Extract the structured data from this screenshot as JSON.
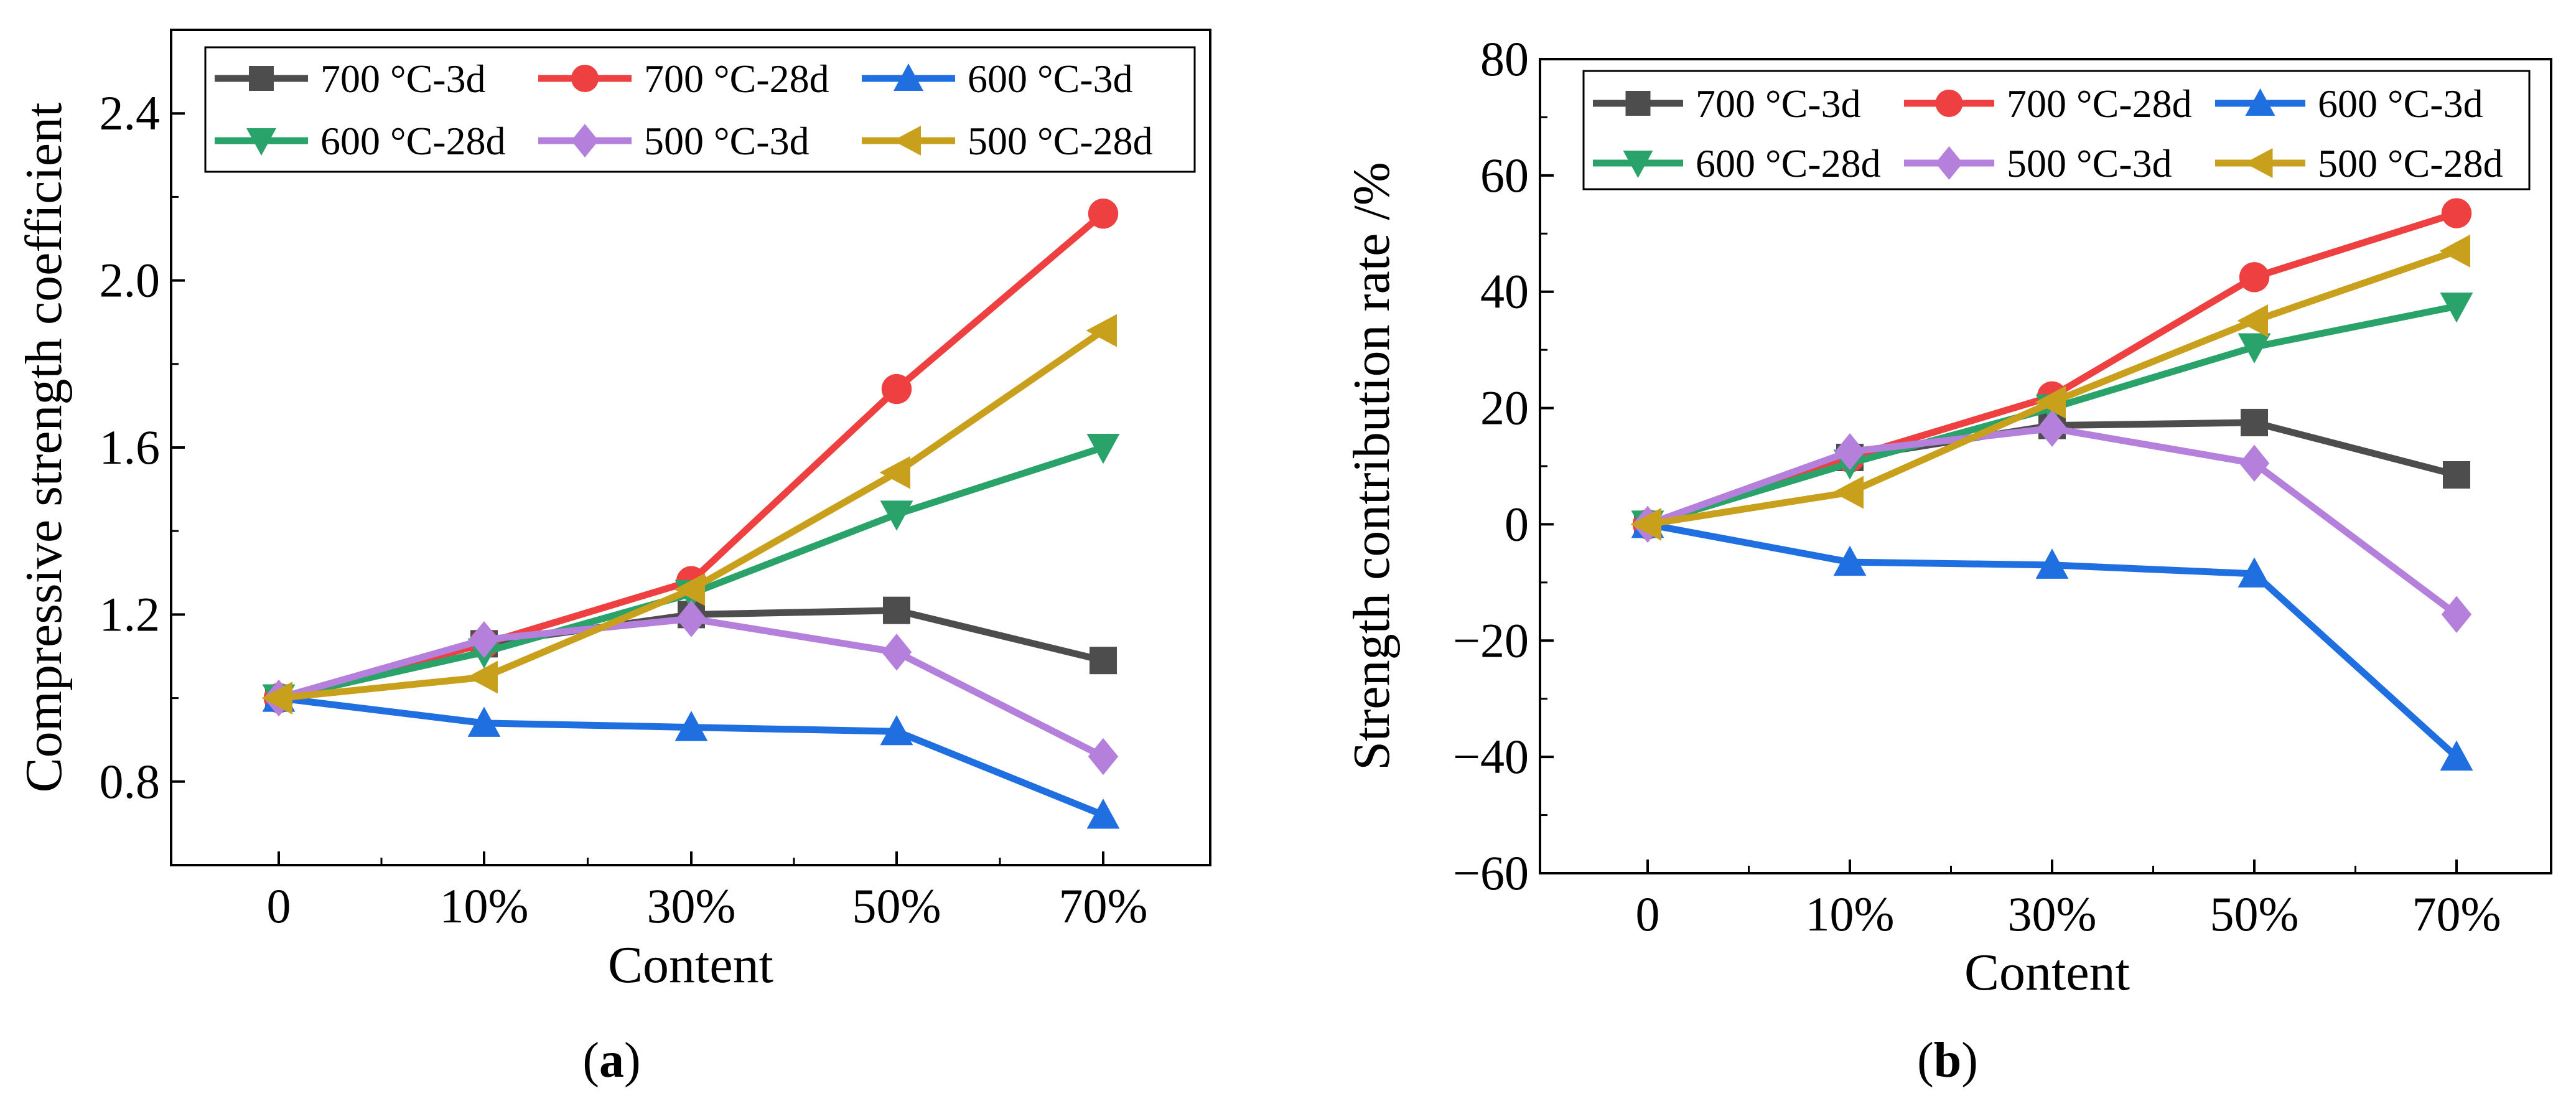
{
  "figure": {
    "panels": [
      {
        "label": "a",
        "caption_open": "(",
        "caption_close": ")"
      },
      {
        "label": "b",
        "caption_open": "(",
        "caption_close": ")"
      }
    ]
  },
  "chart_data": [
    {
      "type": "line",
      "panel": "a",
      "title": "",
      "xlabel": "Content",
      "ylabel": "Compressive strength coefficient",
      "categories": [
        "0",
        "10%",
        "30%",
        "50%",
        "70%"
      ],
      "ylim": [
        0.6,
        2.6
      ],
      "yticks": [
        0.8,
        1.2,
        1.6,
        2.0,
        2.4
      ],
      "ytick_labels": [
        "0.8",
        "1.2",
        "1.6",
        "2.0",
        "2.4"
      ],
      "legend_position": "top-left",
      "series": [
        {
          "name": "700 °C-3d",
          "color": "#4d4d4d",
          "marker": "square",
          "values": [
            1.0,
            1.13,
            1.2,
            1.21,
            1.09
          ]
        },
        {
          "name": "700 °C-28d",
          "color": "#ee4040",
          "marker": "circle",
          "values": [
            1.0,
            1.13,
            1.28,
            1.74,
            2.16
          ]
        },
        {
          "name": "600 °C-3d",
          "color": "#1f6fe0",
          "marker": "triangle-up",
          "values": [
            1.0,
            0.94,
            0.93,
            0.92,
            0.72
          ]
        },
        {
          "name": "600 °C-28d",
          "color": "#2aa36b",
          "marker": "triangle-down",
          "values": [
            1.0,
            1.11,
            1.25,
            1.44,
            1.6
          ]
        },
        {
          "name": "500 °C-3d",
          "color": "#b57fdc",
          "marker": "diamond",
          "values": [
            1.0,
            1.14,
            1.19,
            1.11,
            0.86
          ]
        },
        {
          "name": "500 °C-28d",
          "color": "#c9a01c",
          "marker": "triangle-left",
          "values": [
            1.0,
            1.05,
            1.26,
            1.54,
            1.88
          ]
        }
      ]
    },
    {
      "type": "line",
      "panel": "b",
      "title": "",
      "xlabel": "Content",
      "ylabel": "Strength contribution rate /%",
      "categories": [
        "0",
        "10%",
        "30%",
        "50%",
        "70%"
      ],
      "ylim": [
        -60,
        80
      ],
      "yticks": [
        -60,
        -40,
        -20,
        0,
        20,
        40,
        60,
        80
      ],
      "ytick_labels": [
        "−60",
        "−40",
        "−20",
        "0",
        "20",
        "40",
        "60",
        "80"
      ],
      "legend_position": "top-left",
      "series": [
        {
          "name": "700 °C-3d",
          "color": "#4d4d4d",
          "marker": "square",
          "values": [
            0,
            11.5,
            17.0,
            17.5,
            8.5
          ]
        },
        {
          "name": "700 °C-28d",
          "color": "#ee4040",
          "marker": "circle",
          "values": [
            0,
            11.5,
            22.0,
            42.5,
            53.5
          ]
        },
        {
          "name": "600 °C-3d",
          "color": "#1f6fe0",
          "marker": "triangle-up",
          "values": [
            0,
            -6.5,
            -7.0,
            -8.5,
            -40.0
          ]
        },
        {
          "name": "600 °C-28d",
          "color": "#2aa36b",
          "marker": "triangle-down",
          "values": [
            0,
            10.5,
            20.0,
            30.5,
            37.5
          ]
        },
        {
          "name": "500 °C-3d",
          "color": "#b57fdc",
          "marker": "diamond",
          "values": [
            0,
            12.5,
            16.5,
            10.5,
            -15.5
          ]
        },
        {
          "name": "500 °C-28d",
          "color": "#c9a01c",
          "marker": "triangle-left",
          "values": [
            0,
            5.5,
            21.0,
            35.0,
            47.0
          ]
        }
      ]
    }
  ]
}
